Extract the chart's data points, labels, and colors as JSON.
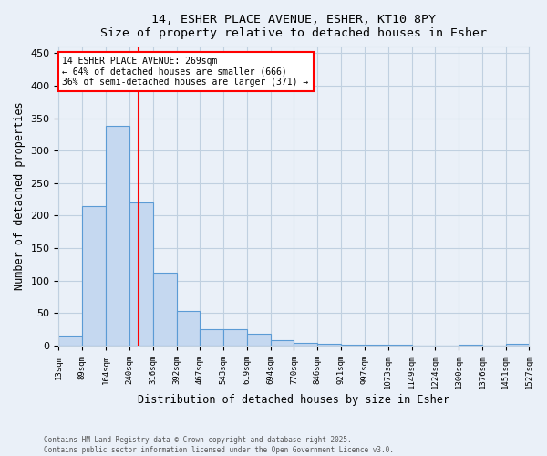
{
  "title_line1": "14, ESHER PLACE AVENUE, ESHER, KT10 8PY",
  "title_line2": "Size of property relative to detached houses in Esher",
  "xlabel": "Distribution of detached houses by size in Esher",
  "ylabel": "Number of detached properties",
  "bar_edges": [
    13,
    89,
    164,
    240,
    316,
    392,
    467,
    543,
    619,
    694,
    770,
    846,
    921,
    997,
    1073,
    1149,
    1224,
    1300,
    1376,
    1451,
    1527
  ],
  "bar_heights": [
    16,
    215,
    338,
    220,
    112,
    53,
    26,
    25,
    18,
    9,
    5,
    3,
    1,
    1,
    1,
    0,
    0,
    1,
    0,
    3
  ],
  "bar_color": "#c5d8f0",
  "bar_edge_color": "#5b9bd5",
  "grid_color": "#c0d0e0",
  "vline_x": 269,
  "vline_color": "red",
  "annotation_text": "14 ESHER PLACE AVENUE: 269sqm\n← 64% of detached houses are smaller (666)\n36% of semi-detached houses are larger (371) →",
  "annotation_box_color": "white",
  "annotation_box_edge_color": "red",
  "ylim": [
    0,
    460
  ],
  "xlim": [
    13,
    1527
  ],
  "tick_labels": [
    "13sqm",
    "89sqm",
    "164sqm",
    "240sqm",
    "316sqm",
    "392sqm",
    "467sqm",
    "543sqm",
    "619sqm",
    "694sqm",
    "770sqm",
    "846sqm",
    "921sqm",
    "997sqm",
    "1073sqm",
    "1149sqm",
    "1224sqm",
    "1300sqm",
    "1376sqm",
    "1451sqm",
    "1527sqm"
  ],
  "tick_positions": [
    13,
    89,
    164,
    240,
    316,
    392,
    467,
    543,
    619,
    694,
    770,
    846,
    921,
    997,
    1073,
    1149,
    1224,
    1300,
    1376,
    1451,
    1527
  ],
  "footnote1": "Contains HM Land Registry data © Crown copyright and database right 2025.",
  "footnote2": "Contains public sector information licensed under the Open Government Licence v3.0.",
  "bg_color": "#eaf0f8"
}
